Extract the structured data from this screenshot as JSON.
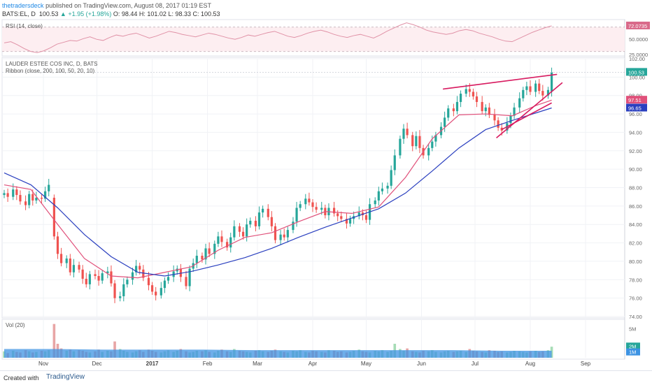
{
  "header": {
    "author": "thetradersdeck",
    "published": "published on TradingView.com, August 08, 2017 01:19 EST",
    "symbol": "BATS:EL, D",
    "last": "100.53",
    "change": "▲ +1.95 (+1.98%)",
    "ohlc": "O: 98.44  H: 101.02  L: 98.33  C: 100.53"
  },
  "footer": {
    "created_with": "Created with",
    "brand": "TradingView"
  },
  "colors": {
    "up": "#26a69a",
    "down": "#ef5350",
    "ma_fast": "#e0507a",
    "ma_slow": "#2a3fbf",
    "trendline": "#d81b60",
    "rsi_line": "#e091a6",
    "rsi_band": "#fdeef1",
    "vol_up": "#a6dcb6",
    "vol_down": "#e8a5a5",
    "vol_ma": "#3d93e3"
  },
  "chart_data": [
    {
      "type": "line",
      "title": "RSI (14, close)",
      "ylim": [
        25,
        80
      ],
      "y_ticks": [
        "50.0000",
        "25.0000"
      ],
      "level_lines": [
        70,
        30
      ],
      "last_value": "72.0735",
      "values": [
        44,
        46,
        41,
        35,
        30,
        28,
        31,
        36,
        42,
        45,
        48,
        47,
        51,
        54,
        50,
        48,
        53,
        57,
        55,
        58,
        60,
        56,
        52,
        55,
        59,
        63,
        61,
        58,
        56,
        54,
        57,
        60,
        58,
        55,
        52,
        50,
        53,
        57,
        55,
        58,
        61,
        63,
        59,
        55,
        53,
        56,
        60,
        63,
        65,
        62,
        58,
        55,
        53,
        56,
        58,
        55,
        52,
        57,
        63,
        68,
        73,
        77,
        74,
        70,
        65,
        62,
        60,
        58,
        60,
        64,
        66,
        64,
        60,
        57,
        54,
        50,
        47,
        46,
        51,
        56,
        61,
        65,
        69,
        72
      ]
    },
    {
      "type": "line",
      "title": "LAUDER ESTEE COS INC, D, BATS",
      "indicator": "Ribbon (close, 200, 100, 50, 20, 10)",
      "ylim": [
        74,
        102
      ],
      "y_ticks": [
        "102.00",
        "100.00",
        "98.00",
        "96.00",
        "94.00",
        "92.00",
        "90.00",
        "88.00",
        "86.00",
        "84.00",
        "82.00",
        "80.00",
        "78.00",
        "76.00",
        "74.00"
      ],
      "x_ticks": [
        "Nov",
        "Dec",
        "2017",
        "Feb",
        "Mar",
        "Apr",
        "May",
        "Jun",
        "Jul",
        "Aug",
        "Sep"
      ],
      "x_tick_days": [
        22,
        52,
        83,
        114,
        142,
        173,
        203,
        234,
        264,
        295,
        326
      ],
      "price_labels": [
        "100.53",
        "97.51",
        "96.65"
      ],
      "price_label_values": [
        100.53,
        97.51,
        96.65
      ],
      "candles_close": [
        87.4,
        87.0,
        87.8,
        87.2,
        86.5,
        86.1,
        87.3,
        86.6,
        86.9,
        86.8,
        87.6,
        88.3,
        82.7,
        80.8,
        79.8,
        80.3,
        78.8,
        79.6,
        79.1,
        78.1,
        77.5,
        78.6,
        78.4,
        77.9,
        78.7,
        78.9,
        77.6,
        76.0,
        76.2,
        77.5,
        78.0,
        78.8,
        79.5,
        79.1,
        78.2,
        77.4,
        76.7,
        76.3,
        77.1,
        77.9,
        78.3,
        78.9,
        79.2,
        78.3,
        77.3,
        79.2,
        79.8,
        80.6,
        80.2,
        81.4,
        80.8,
        81.9,
        82.7,
        82.1,
        81.5,
        82.6,
        83.8,
        83.2,
        82.7,
        84.0,
        84.4,
        83.8,
        85.3,
        85.7,
        84.8,
        83.8,
        82.3,
        82.9,
        82.6,
        83.4,
        84.3,
        85.8,
        86.2,
        86.8,
        86.4,
        85.9,
        85.6,
        85.8,
        85.0,
        85.8,
        85.2,
        84.9,
        84.6,
        84.1,
        84.6,
        84.9,
        85.3,
        85.0,
        84.5,
        86.2,
        86.6,
        87.6,
        87.9,
        88.2,
        89.9,
        91.5,
        93.3,
        94.4,
        93.7,
        92.5,
        93.6,
        92.3,
        91.5,
        92.3,
        93.0,
        93.7,
        94.6,
        95.6,
        96.6,
        96.3,
        97.3,
        98.2,
        98.7,
        98.4,
        97.9,
        97.3,
        96.3,
        96.7,
        95.9,
        95.3,
        94.5,
        94.2,
        95.0,
        95.8,
        96.7,
        97.7,
        98.6,
        99.0,
        98.4,
        99.3,
        98.5,
        98.0,
        98.6,
        100.53
      ],
      "candles_open": [
        87.2,
        87.4,
        87.0,
        87.8,
        87.2,
        86.5,
        86.1,
        87.3,
        86.6,
        86.9,
        86.8,
        87.6,
        86.9,
        82.7,
        80.8,
        79.8,
        80.3,
        78.8,
        79.6,
        79.1,
        78.1,
        77.5,
        78.6,
        78.4,
        77.9,
        78.7,
        78.9,
        77.6,
        76.0,
        76.2,
        77.5,
        78.0,
        78.8,
        79.5,
        79.1,
        78.2,
        77.4,
        76.7,
        76.3,
        77.1,
        77.9,
        78.3,
        78.9,
        79.2,
        78.3,
        77.3,
        79.2,
        79.8,
        80.6,
        80.2,
        81.4,
        80.8,
        81.9,
        82.7,
        82.1,
        81.5,
        82.6,
        83.8,
        83.2,
        82.7,
        84.0,
        84.4,
        83.8,
        85.3,
        85.7,
        84.8,
        83.8,
        82.3,
        82.9,
        82.6,
        83.4,
        84.3,
        85.8,
        86.2,
        86.8,
        86.4,
        85.9,
        85.6,
        85.8,
        85.0,
        85.8,
        85.2,
        84.9,
        84.6,
        84.1,
        84.6,
        84.9,
        85.3,
        85.0,
        84.5,
        86.2,
        86.6,
        87.6,
        87.9,
        88.2,
        89.9,
        91.5,
        93.3,
        94.4,
        93.7,
        92.5,
        93.6,
        92.3,
        91.5,
        92.3,
        93.0,
        93.7,
        94.6,
        95.6,
        96.6,
        96.3,
        97.3,
        98.2,
        98.7,
        98.4,
        97.9,
        97.3,
        96.3,
        96.7,
        95.9,
        95.3,
        94.5,
        94.2,
        95.0,
        95.8,
        96.7,
        97.7,
        98.6,
        99.0,
        98.4,
        99.3,
        98.5,
        98.0,
        98.44
      ],
      "series": [
        {
          "name": "",
          "role": "ma_fast",
          "days": [
            0,
            15,
            30,
            45,
            60,
            75,
            90,
            105,
            120,
            135,
            150,
            165,
            180,
            195,
            210,
            225,
            240,
            255,
            270,
            285,
            298,
            307
          ],
          "values": [
            88.3,
            87.8,
            84.0,
            80.3,
            78.4,
            78.2,
            78.8,
            79.4,
            81.2,
            82.6,
            83.1,
            84.3,
            85.4,
            85.2,
            85.9,
            89.1,
            93.3,
            95.9,
            96.0,
            95.8,
            96.9,
            97.5
          ]
        },
        {
          "name": "",
          "role": "ma_slow",
          "days": [
            0,
            15,
            30,
            45,
            60,
            75,
            90,
            105,
            120,
            135,
            150,
            165,
            180,
            195,
            210,
            225,
            240,
            255,
            270,
            285,
            298,
            307
          ],
          "values": [
            89.6,
            88.3,
            85.8,
            82.9,
            80.5,
            78.8,
            78.4,
            78.9,
            79.6,
            80.4,
            81.4,
            82.6,
            83.7,
            84.7,
            85.7,
            87.4,
            89.8,
            92.3,
            94.3,
            95.3,
            96.1,
            96.65
          ]
        }
      ],
      "trendlines": [
        {
          "days": [
            246,
            310
          ],
          "values": [
            98.7,
            100.3
          ]
        },
        {
          "days": [
            276,
            313
          ],
          "values": [
            93.4,
            99.4
          ]
        },
        {
          "days": [
            279,
            307
          ],
          "values": [
            94.3,
            97.2
          ]
        }
      ]
    },
    {
      "type": "bar",
      "title": "Vol (20)",
      "y_ticks": [
        "5M"
      ],
      "ylim": [
        0,
        6
      ],
      "last_labels": [
        "2M",
        "1M"
      ],
      "volume": [
        1.1,
        0.8,
        1.2,
        1.0,
        0.9,
        1.3,
        1.1,
        0.9,
        1.0,
        1.2,
        1.1,
        1.3,
        5.8,
        2.4,
        1.6,
        1.2,
        1.4,
        1.1,
        1.3,
        1.2,
        1.0,
        0.9,
        1.1,
        1.4,
        1.0,
        1.2,
        1.1,
        2.8,
        1.5,
        1.2,
        1.0,
        0.9,
        1.1,
        1.3,
        1.0,
        1.4,
        1.2,
        1.0,
        0.9,
        1.1,
        1.3,
        1.0,
        1.2,
        1.5,
        1.1,
        0.9,
        1.0,
        1.2,
        1.1,
        1.3,
        1.0,
        0.9,
        1.2,
        1.4,
        1.1,
        1.0,
        1.5,
        1.2,
        1.1,
        1.0,
        0.9,
        1.2,
        1.3,
        1.1,
        1.0,
        1.2,
        1.4,
        1.1,
        1.0,
        0.9,
        1.2,
        1.1,
        1.3,
        1.0,
        0.9,
        1.2,
        1.1,
        1.0,
        0.9,
        1.3,
        1.2,
        1.0,
        1.1,
        0.9,
        1.0,
        1.2,
        1.4,
        1.1,
        1.0,
        0.9,
        1.2,
        1.1,
        1.3,
        1.0,
        1.2,
        2.4,
        1.5,
        1.2,
        1.6,
        1.1,
        1.0,
        0.9,
        1.2,
        1.1,
        1.3,
        1.0,
        0.9,
        1.1,
        1.2,
        1.0,
        1.1,
        1.2,
        1.0,
        1.5,
        1.2,
        1.1,
        1.0,
        0.9,
        1.3,
        1.2,
        1.0,
        1.1,
        0.9,
        1.0,
        1.2,
        1.1,
        1.0,
        0.9,
        1.1,
        1.2,
        1.0,
        1.1,
        1.3,
        1.9
      ],
      "vol_ma": [
        1.5,
        1.5,
        1.4,
        1.4,
        1.4,
        1.3,
        1.3,
        1.3,
        1.3,
        1.3,
        1.2,
        1.2
      ]
    }
  ]
}
